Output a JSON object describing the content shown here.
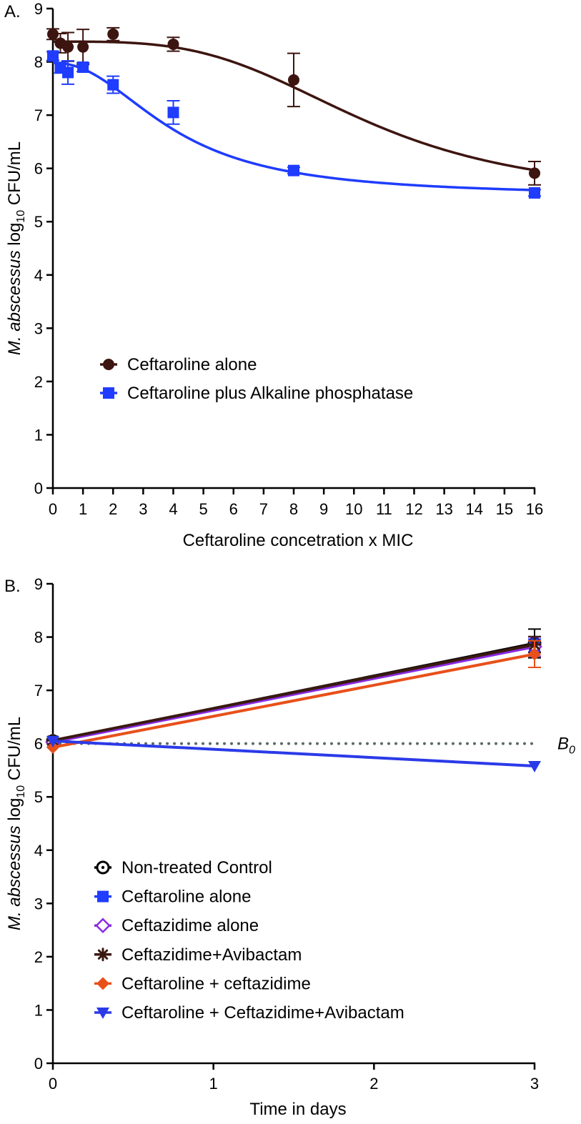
{
  "chart_data": [
    {
      "type": "line",
      "panel_label": "A.",
      "title": "",
      "xlabel": "Ceftaroline concetration x MIC",
      "ylabel": {
        "italic": "M. abscessus",
        "prefix": " log",
        "subscript": "10",
        "suffix": " CFU/mL"
      },
      "xlim": [
        0,
        16
      ],
      "ylim": [
        0,
        9
      ],
      "xticks": [
        "0",
        "1",
        "2",
        "3",
        "4",
        "5",
        "6",
        "7",
        "8",
        "9",
        "10",
        "11",
        "12",
        "13",
        "14",
        "15",
        "16"
      ],
      "yticks": [
        "0",
        "1",
        "2",
        "3",
        "4",
        "5",
        "6",
        "7",
        "8",
        "9"
      ],
      "grid": false,
      "legend_position": "middle-left",
      "series": [
        {
          "name": "Ceftaroline alone",
          "color": "#3d1510",
          "marker": "circle",
          "x": [
            0,
            0.25,
            0.5,
            1,
            2,
            4,
            8,
            16
          ],
          "y": [
            8.52,
            8.35,
            8.28,
            8.28,
            8.52,
            8.33,
            7.66,
            5.91
          ],
          "err": [
            0.1,
            0.18,
            0.27,
            0.33,
            0.12,
            0.13,
            0.5,
            0.22
          ],
          "fit_curve": {
            "bottom": 5.45,
            "top": 8.38,
            "x50": 10.3,
            "hill": 3.5
          }
        },
        {
          "name": "Ceftaroline plus Alkaline phosphatase",
          "color": "#1f3cff",
          "marker": "square",
          "x": [
            0,
            0.25,
            0.5,
            1,
            2,
            4,
            8,
            16
          ],
          "y": [
            8.11,
            7.89,
            7.8,
            7.9,
            7.57,
            7.05,
            5.96,
            5.54
          ],
          "err": [
            0.08,
            0.1,
            0.22,
            0.08,
            0.16,
            0.22,
            0.06,
            0.06
          ],
          "fit_curve": {
            "bottom": 5.48,
            "top": 7.98,
            "x50": 4.0,
            "hill": 2.2
          }
        }
      ]
    },
    {
      "type": "line",
      "panel_label": "B.",
      "title": "",
      "xlabel": "Time in days",
      "ylabel": {
        "italic": "M. abscessus",
        "prefix": " log",
        "subscript": "10",
        "suffix": " CFU/mL"
      },
      "xlim": [
        0,
        3
      ],
      "ylim": [
        0,
        9
      ],
      "xticks": [
        "0",
        "1",
        "2",
        "3"
      ],
      "yticks": [
        "0",
        "1",
        "2",
        "3",
        "4",
        "5",
        "6",
        "7",
        "8",
        "9"
      ],
      "grid": false,
      "legend_position": "lower-left",
      "reference_line": {
        "label": "B",
        "label_sub": "0",
        "y": 6.0,
        "color": "#5a6a64",
        "style": "dotted"
      },
      "series": [
        {
          "name": "Non-treated Control",
          "color": "#000000",
          "marker": "circle-dot",
          "x": [
            0,
            3
          ],
          "y": [
            6.05,
            7.88
          ],
          "err": [
            0.03,
            0.27
          ]
        },
        {
          "name": "Ceftaroline alone",
          "color": "#1f3cff",
          "marker": "square",
          "x": [
            0,
            3
          ],
          "y": [
            6.04,
            7.84
          ],
          "err": [
            0.03,
            0.12
          ]
        },
        {
          "name": "Ceftazidime alone",
          "color": "#8a2be2",
          "marker": "diamond-open",
          "x": [
            0,
            3
          ],
          "y": [
            6.03,
            7.82
          ],
          "err": [
            0.03,
            0.18
          ]
        },
        {
          "name": "Ceftazidime+Avibactam",
          "color": "#3a1a10",
          "marker": "asterisk",
          "x": [
            0,
            3
          ],
          "y": [
            6.06,
            7.86
          ],
          "err": [
            0.03,
            0.15
          ]
        },
        {
          "name": "Ceftaroline + ceftazidime",
          "color": "#e8501a",
          "marker": "diamond",
          "x": [
            0,
            3
          ],
          "y": [
            5.93,
            7.68
          ],
          "err": [
            0.03,
            0.25
          ]
        },
        {
          "name": "Ceftaroline + Ceftazidime+Avibactam",
          "color": "#2b3ae8",
          "marker": "triangle-down",
          "x": [
            0,
            3
          ],
          "y": [
            6.05,
            5.58
          ],
          "err": [
            0.02,
            0.02
          ]
        }
      ]
    }
  ]
}
